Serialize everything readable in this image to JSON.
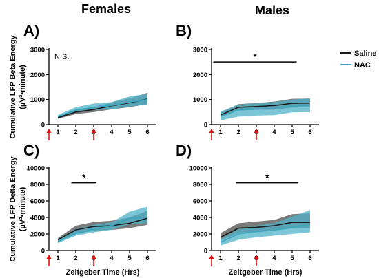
{
  "headers": {
    "females": "Females",
    "males": "Males"
  },
  "legend": {
    "items": [
      {
        "label": "Saline",
        "color": "#1a1a1a"
      },
      {
        "label": "NAC",
        "color": "#3aa6bd"
      }
    ]
  },
  "colors": {
    "saline_band": "#5a5a5a",
    "nac_band": "#4fb3c8",
    "arrow": "#e01010"
  },
  "chart_data": [
    {
      "type": "line",
      "panel": "A)",
      "column": "Females",
      "ylabel_line1": "Cumulative LFP Beta Energy",
      "ylabel_line2": "(µV²•minute)",
      "xlabel": "",
      "x": [
        1,
        2,
        3,
        4,
        5,
        6
      ],
      "ylim": [
        0,
        3000
      ],
      "yticks": [
        0,
        1000,
        2000,
        3000
      ],
      "series": [
        {
          "name": "Saline",
          "values": [
            280,
            500,
            600,
            750,
            870,
            1020
          ],
          "lower": [
            230,
            420,
            500,
            610,
            700,
            820
          ],
          "upper": [
            340,
            580,
            700,
            890,
            1050,
            1270
          ]
        },
        {
          "name": "NAC",
          "values": [
            320,
            580,
            690,
            760,
            900,
            1000
          ],
          "lower": [
            250,
            480,
            570,
            610,
            720,
            800
          ],
          "upper": [
            380,
            700,
            840,
            900,
            1120,
            1230
          ]
        }
      ],
      "annotation": "N.S.",
      "significance": null,
      "arrows_at": [
        1,
        3
      ]
    },
    {
      "type": "line",
      "panel": "B)",
      "column": "Males",
      "ylabel_line1": "",
      "ylabel_line2": "",
      "xlabel": "",
      "x": [
        1,
        2,
        3,
        4,
        5,
        6
      ],
      "ylim": [
        0,
        3000
      ],
      "yticks": [
        0,
        1000,
        2000,
        3000
      ],
      "series": [
        {
          "name": "Saline",
          "values": [
            380,
            690,
            720,
            760,
            850,
            860
          ],
          "lower": [
            290,
            560,
            590,
            600,
            680,
            690
          ],
          "upper": [
            480,
            820,
            860,
            920,
            1030,
            1040
          ]
        },
        {
          "name": "NAC",
          "values": [
            340,
            580,
            620,
            650,
            740,
            770
          ],
          "lower": [
            170,
            320,
            360,
            380,
            490,
            500
          ],
          "upper": [
            520,
            800,
            850,
            900,
            1000,
            1050
          ]
        }
      ],
      "annotation": "",
      "significance": {
        "label": "*",
        "from": 0.6,
        "to": 5.25,
        "y": 2500
      },
      "arrows_at": [
        1,
        3
      ]
    },
    {
      "type": "line",
      "panel": "C)",
      "column": "Females",
      "ylabel_line1": "Cumulative LFP Delta Energy",
      "ylabel_line2": "(µV²•minute)",
      "xlabel": "Zeitgeber Time (Hrs)",
      "x": [
        1,
        2,
        3,
        4,
        5,
        6
      ],
      "ylim": [
        0,
        10000
      ],
      "yticks": [
        0,
        2000,
        4000,
        6000,
        8000,
        10000
      ],
      "series": [
        {
          "name": "Saline",
          "values": [
            1300,
            2500,
            2900,
            3000,
            3300,
            3900
          ],
          "lower": [
            1000,
            2000,
            2400,
            2500,
            2700,
            3100
          ],
          "upper": [
            1500,
            3000,
            3450,
            3600,
            4000,
            4800
          ]
        },
        {
          "name": "NAC",
          "values": [
            1100,
            2100,
            2600,
            3000,
            3900,
            4000
          ],
          "lower": [
            900,
            1800,
            2200,
            2500,
            3200,
            3300
          ],
          "upper": [
            1400,
            2600,
            3100,
            3400,
            4700,
            5300
          ]
        }
      ],
      "annotation": "",
      "significance": {
        "label": "*",
        "from": 1.75,
        "to": 3.15,
        "y": 8200
      },
      "arrows_at": [
        1,
        3
      ]
    },
    {
      "type": "line",
      "panel": "D)",
      "column": "Males",
      "ylabel_line1": "",
      "ylabel_line2": "",
      "xlabel": "Zeitgeber Time (Hrs)",
      "x": [
        1,
        2,
        3,
        4,
        5,
        6
      ],
      "ylim": [
        0,
        10000
      ],
      "yticks": [
        0,
        2000,
        4000,
        6000,
        8000,
        10000
      ],
      "series": [
        {
          "name": "Saline",
          "values": [
            1600,
            2700,
            2800,
            3000,
            3400,
            3400
          ],
          "lower": [
            1200,
            2100,
            2200,
            2400,
            2700,
            2700
          ],
          "upper": [
            2100,
            3300,
            3500,
            3700,
            4400,
            4500
          ]
        },
        {
          "name": "NAC",
          "values": [
            1000,
            2000,
            2300,
            2500,
            2800,
            3200
          ],
          "lower": [
            600,
            1300,
            1600,
            1800,
            2000,
            2200
          ],
          "upper": [
            1400,
            2600,
            3000,
            3300,
            4100,
            4900
          ]
        }
      ],
      "annotation": "",
      "significance": {
        "label": "*",
        "from": 1.85,
        "to": 5.35,
        "y": 8200
      },
      "arrows_at": [
        1,
        3
      ]
    }
  ]
}
